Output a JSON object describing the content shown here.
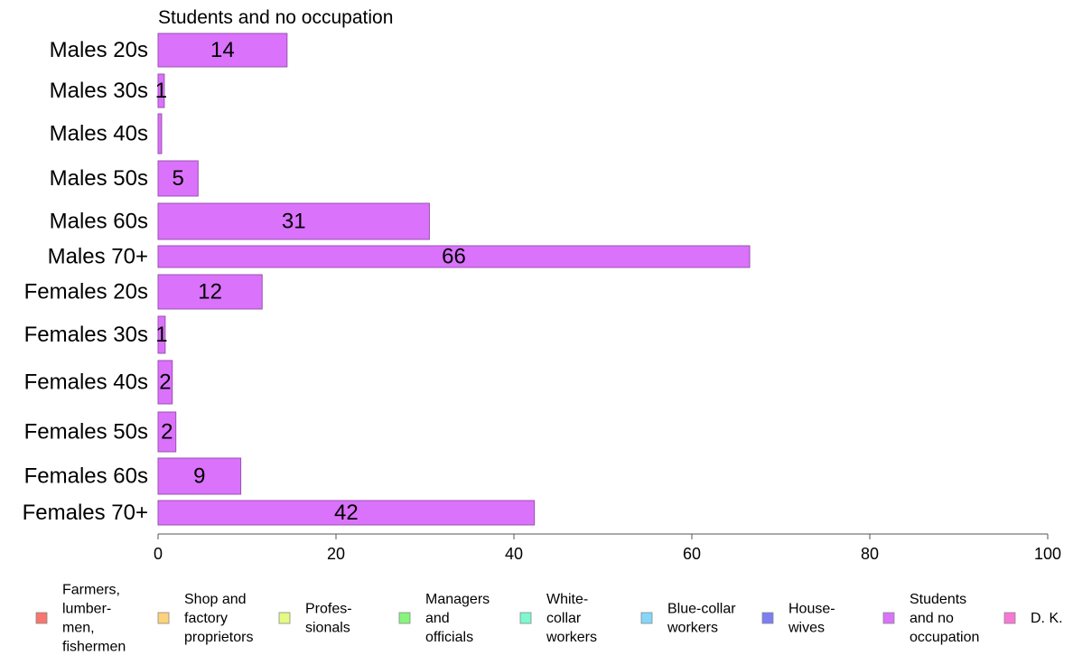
{
  "chart_data": {
    "type": "bar",
    "orientation": "horizontal",
    "subtitle": "Students and no occupation",
    "categories": [
      "Males 20s",
      "Males 30s",
      "Males 40s",
      "Males 50s",
      "Males 60s",
      "Males 70+",
      "Females 20s",
      "Females 30s",
      "Females 40s",
      "Females 50s",
      "Females 60s",
      "Females 70+"
    ],
    "values": [
      14.5,
      0.7,
      0.4,
      4.5,
      30.5,
      66.5,
      11.7,
      0.8,
      1.6,
      2.0,
      9.3,
      42.3
    ],
    "value_labels": [
      "14",
      "1",
      "",
      "5",
      "31",
      "66",
      "12",
      "1",
      "2",
      "2",
      "9",
      "42"
    ],
    "xlim": [
      0,
      100
    ],
    "x_ticks": [
      "0",
      "20",
      "40",
      "60",
      "80",
      "100"
    ],
    "grid": false,
    "bar_color": "#da72fb",
    "bar_stroke": "#9a52b0",
    "legend_position": "bottom",
    "legend": [
      {
        "label": [
          "Farmers,",
          "lumber-",
          "men,",
          "fishermen"
        ],
        "color": "#f8766d"
      },
      {
        "label": [
          "Shop and",
          "factory",
          "proprietors"
        ],
        "color": "#fdd27a"
      },
      {
        "label": [
          "Profes-",
          "sionals"
        ],
        "color": "#e4fa83"
      },
      {
        "label": [
          "Managers",
          "and",
          "officials"
        ],
        "color": "#86f57c"
      },
      {
        "label": [
          "White-",
          "collar",
          "workers"
        ],
        "color": "#7ef8d0"
      },
      {
        "label": [
          "Blue-collar",
          "workers"
        ],
        "color": "#84d7fa"
      },
      {
        "label": [
          "House-",
          "wives"
        ],
        "color": "#7b7ff2"
      },
      {
        "label": [
          "Students",
          "and no",
          "occupation"
        ],
        "color": "#da72fb"
      },
      {
        "label": [
          "D. K."
        ],
        "color": "#f877d6"
      }
    ]
  }
}
